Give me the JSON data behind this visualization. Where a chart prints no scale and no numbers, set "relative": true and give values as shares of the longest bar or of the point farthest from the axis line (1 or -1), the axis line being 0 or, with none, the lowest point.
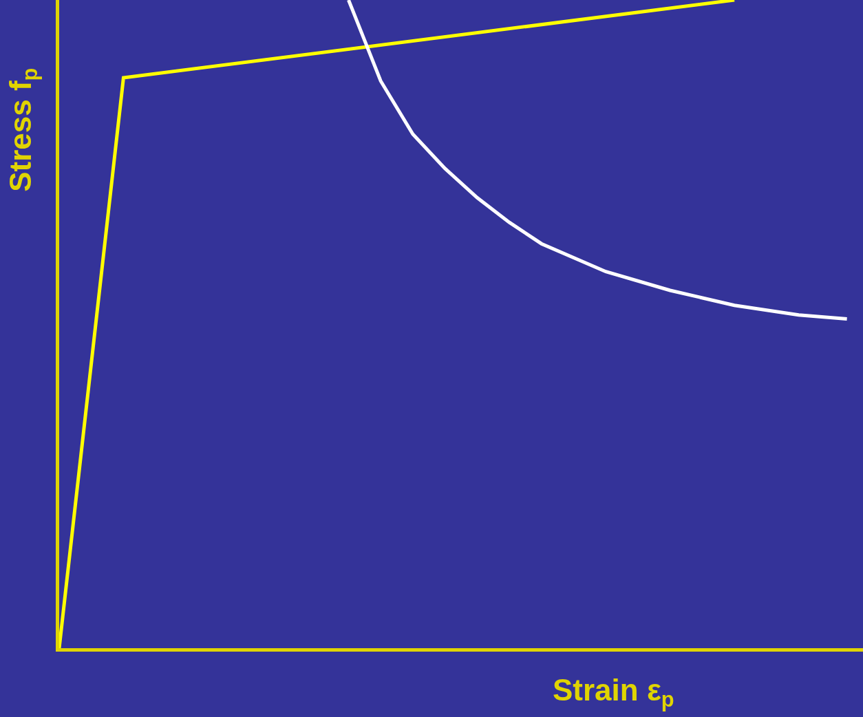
{
  "chart_data": {
    "type": "line",
    "relative": true,
    "xlabel": "Strain ε$_{p}$",
    "ylabel": "Stress f$_{p}$",
    "grid": false,
    "marker": "none",
    "line_style": "solid",
    "categories": [
      null,
      null,
      null,
      null,
      null,
      null,
      null,
      null,
      null,
      null,
      null,
      null,
      null,
      null,
      null,
      null,
      null,
      null,
      null,
      null,
      null,
      null,
      null,
      null,
      null,
      null,
      null,
      null,
      null,
      null,
      null,
      null,
      null,
      null,
      null,
      null,
      null,
      null,
      null,
      null,
      null,
      null,
      null,
      null,
      null,
      null,
      null,
      null,
      null,
      null,
      null
    ],
    "series": [
      {
        "color": "#ffff00",
        "values": [
          0,
          null,
          null,
          null,
          0.88,
          null,
          null,
          null,
          null,
          null,
          null,
          null,
          null,
          null,
          null,
          null,
          null,
          null,
          null,
          null,
          null,
          null,
          null,
          null,
          null,
          null,
          null,
          null,
          null,
          null,
          null,
          null,
          null,
          null,
          null,
          null,
          null,
          null,
          null,
          null,
          null,
          null,
          1.0,
          null,
          null,
          null,
          null,
          null,
          null,
          null,
          null
        ]
      },
      {
        "color": "#ffffff",
        "values": [
          null,
          null,
          null,
          null,
          null,
          null,
          null,
          null,
          null,
          null,
          null,
          null,
          null,
          null,
          null,
          null,
          null,
          null,
          1.0,
          null,
          0.875,
          null,
          0.793,
          null,
          0.74,
          null,
          0.695,
          null,
          0.657,
          null,
          0.624,
          null,
          null,
          null,
          0.581,
          null,
          null,
          null,
          0.552,
          null,
          null,
          null,
          0.529,
          null,
          null,
          null,
          0.514,
          null,
          null,
          0.508,
          null
        ]
      }
    ]
  }
}
